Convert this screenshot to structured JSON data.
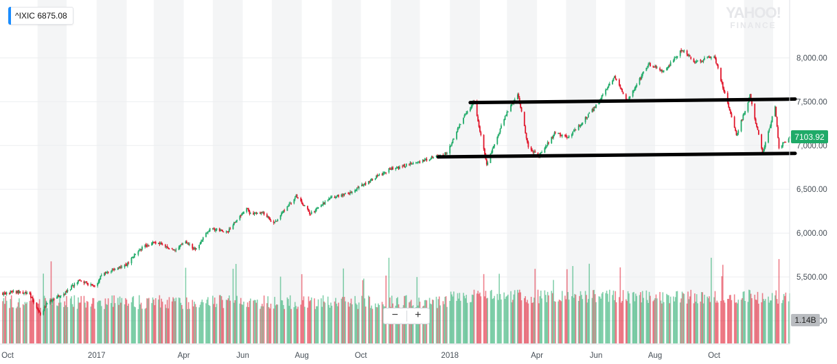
{
  "header": {
    "symbol": "^IXIC",
    "value": "6875.08",
    "watermark_line1": "YAHOO!",
    "watermark_line2": "FINANCE"
  },
  "controls": {
    "zoom_out": "−",
    "zoom_in": "+"
  },
  "colors": {
    "up": "#1faa68",
    "down": "#e0162b",
    "badge": "#1a8cff",
    "band": "#f4f5f6",
    "annotation": "#000000",
    "grid": "#eceef0",
    "axis_text": "#464e56",
    "volume_badge": "#b9bcc0"
  },
  "chart_data": {
    "type": "candlestick",
    "title": "",
    "symbol": "^IXIC",
    "x_range": [
      "2016-09-26",
      "2018-12-18"
    ],
    "y_range": [
      4600,
      8380
    ],
    "y_ticks": [
      {
        "value": 5000,
        "label": "5,000.00"
      },
      {
        "value": 5500,
        "label": "5,500.00"
      },
      {
        "value": 6000,
        "label": "6,000.00"
      },
      {
        "value": 6500,
        "label": "6,500.00"
      },
      {
        "value": 7000,
        "label": "7,000.00"
      },
      {
        "value": 7500,
        "label": "7,500.00"
      },
      {
        "value": 8000,
        "label": "8,000.00"
      }
    ],
    "x_ticks": [
      {
        "date": "2016-10-01",
        "label": "Oct"
      },
      {
        "date": "2017-01-01",
        "label": "2017"
      },
      {
        "date": "2017-04-01",
        "label": "Apr"
      },
      {
        "date": "2017-06-01",
        "label": "Jun"
      },
      {
        "date": "2017-08-01",
        "label": "Aug"
      },
      {
        "date": "2017-10-01",
        "label": "Oct"
      },
      {
        "date": "2018-01-01",
        "label": "2018"
      },
      {
        "date": "2018-04-01",
        "label": "Apr"
      },
      {
        "date": "2018-06-01",
        "label": "Jun"
      },
      {
        "date": "2018-08-01",
        "label": "Aug"
      },
      {
        "date": "2018-10-01",
        "label": "Oct"
      }
    ],
    "shaded_months": [
      [
        "2016-11-01",
        "2016-12-01"
      ],
      [
        "2017-01-01",
        "2017-02-01"
      ],
      [
        "2017-03-01",
        "2017-04-01"
      ],
      [
        "2017-05-01",
        "2017-06-01"
      ],
      [
        "2017-07-01",
        "2017-08-01"
      ],
      [
        "2017-09-01",
        "2017-10-01"
      ],
      [
        "2017-11-01",
        "2017-12-01"
      ],
      [
        "2018-01-01",
        "2018-02-01"
      ],
      [
        "2018-03-01",
        "2018-04-01"
      ],
      [
        "2018-05-01",
        "2018-06-01"
      ],
      [
        "2018-07-01",
        "2018-08-01"
      ],
      [
        "2018-09-01",
        "2018-10-01"
      ],
      [
        "2018-11-01",
        "2018-12-01"
      ]
    ],
    "price_path": [
      [
        "2016-09-26",
        5310
      ],
      [
        "2016-10-10",
        5330
      ],
      [
        "2016-10-24",
        5300
      ],
      [
        "2016-11-04",
        5060
      ],
      [
        "2016-11-10",
        5200
      ],
      [
        "2016-12-01",
        5330
      ],
      [
        "2016-12-13",
        5460
      ],
      [
        "2016-12-30",
        5390
      ],
      [
        "2017-01-06",
        5520
      ],
      [
        "2017-01-31",
        5630
      ],
      [
        "2017-02-15",
        5820
      ],
      [
        "2017-03-01",
        5900
      ],
      [
        "2017-03-22",
        5810
      ],
      [
        "2017-04-03",
        5900
      ],
      [
        "2017-04-13",
        5810
      ],
      [
        "2017-04-28",
        6050
      ],
      [
        "2017-05-17",
        6020
      ],
      [
        "2017-06-05",
        6300
      ],
      [
        "2017-06-09",
        6210
      ],
      [
        "2017-06-22",
        6240
      ],
      [
        "2017-07-03",
        6110
      ],
      [
        "2017-07-26",
        6420
      ],
      [
        "2017-08-10",
        6220
      ],
      [
        "2017-08-30",
        6400
      ],
      [
        "2017-09-20",
        6460
      ],
      [
        "2017-10-09",
        6590
      ],
      [
        "2017-10-31",
        6730
      ],
      [
        "2017-11-10",
        6750
      ],
      [
        "2017-11-29",
        6820
      ],
      [
        "2017-12-08",
        6840
      ],
      [
        "2017-12-29",
        6910
      ],
      [
        "2018-01-12",
        7260
      ],
      [
        "2018-01-26",
        7500
      ],
      [
        "2018-02-08",
        6780
      ],
      [
        "2018-02-27",
        7330
      ],
      [
        "2018-03-12",
        7590
      ],
      [
        "2018-03-23",
        6990
      ],
      [
        "2018-04-02",
        6870
      ],
      [
        "2018-04-20",
        7150
      ],
      [
        "2018-05-03",
        7080
      ],
      [
        "2018-05-31",
        7440
      ],
      [
        "2018-06-20",
        7780
      ],
      [
        "2018-07-03",
        7500
      ],
      [
        "2018-07-25",
        7930
      ],
      [
        "2018-08-10",
        7840
      ],
      [
        "2018-08-29",
        8100
      ],
      [
        "2018-09-11",
        7950
      ],
      [
        "2018-10-01",
        8030
      ],
      [
        "2018-10-24",
        7110
      ],
      [
        "2018-11-07",
        7570
      ],
      [
        "2018-11-20",
        6910
      ],
      [
        "2018-12-03",
        7440
      ],
      [
        "2018-12-07",
        6970
      ],
      [
        "2018-12-18",
        7103.92
      ]
    ],
    "volume_range_billions": [
      0,
      5.5
    ],
    "annotations": [
      {
        "type": "trendline",
        "from": [
          "2018-01-22",
          7490
        ],
        "to": [
          "2018-12-18",
          7530
        ]
      },
      {
        "type": "trendline",
        "from": [
          "2017-12-20",
          6870
        ],
        "to": [
          "2018-12-18",
          6910
        ]
      }
    ],
    "last_price": {
      "value": 7103.92,
      "label": "7103.92"
    },
    "last_volume": {
      "label": "1.14B"
    }
  }
}
